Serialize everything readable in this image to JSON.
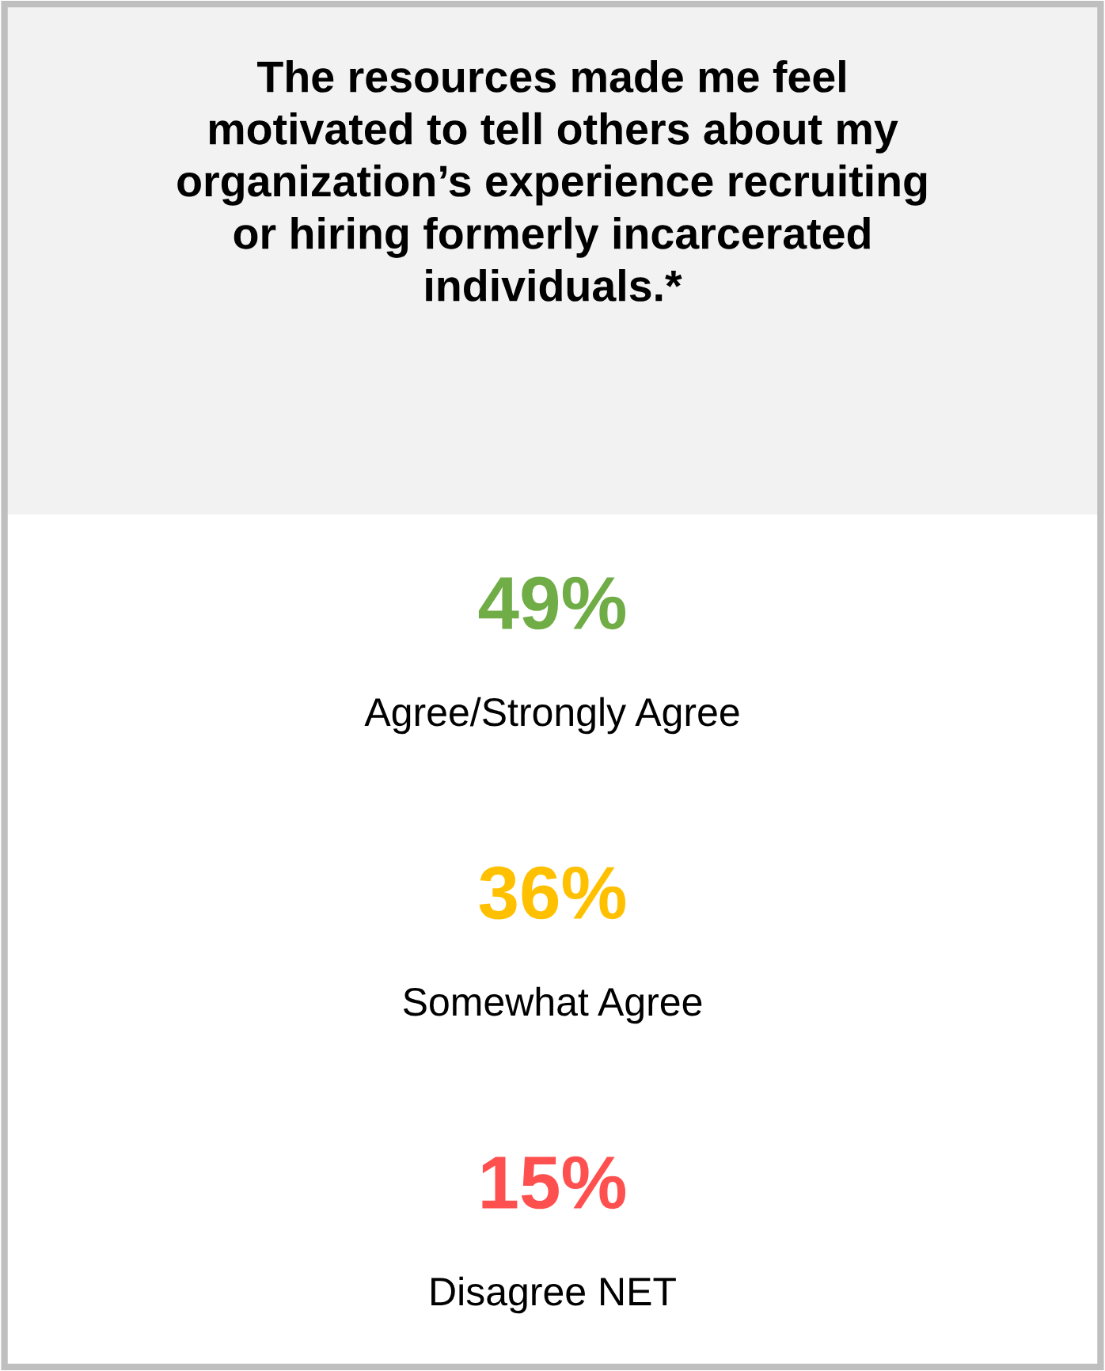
{
  "chart_data": {
    "type": "other",
    "title": "The resources made me feel\nmotivated to tell others about my\norganization’s experience recruiting\nor hiring formerly incarcerated\nindividuals.*",
    "categories": [
      "Agree/Strongly Agree",
      "Somewhat Agree",
      "Disagree NET"
    ],
    "values": [
      49,
      36,
      15
    ],
    "value_labels": [
      "49%",
      "36%",
      "15%"
    ],
    "colors": [
      "#70ad47",
      "#ffc000",
      "#ff5050"
    ]
  }
}
